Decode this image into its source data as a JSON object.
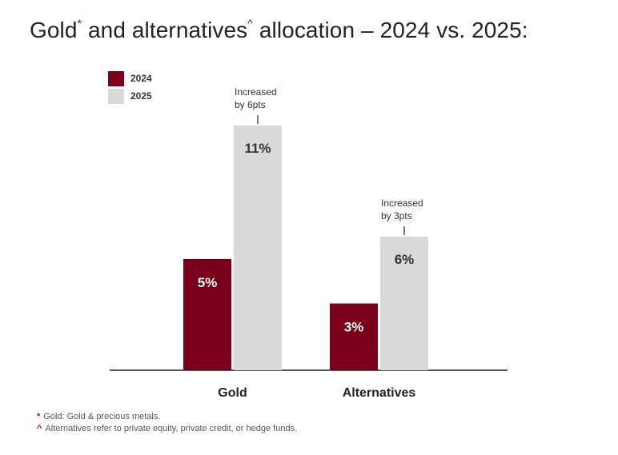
{
  "title": {
    "part1": "Gold",
    "mark1": "*",
    "part2": " and alternatives",
    "mark2": "^",
    "part3": " allocation – 2024 vs. 2025:"
  },
  "colors": {
    "series_2024": "#7a0019",
    "series_2025": "#d9d9d9",
    "accent_mark": "#b0001e"
  },
  "chart_data": {
    "type": "bar",
    "categories": [
      "Gold",
      "Alternatives"
    ],
    "series": [
      {
        "name": "2024",
        "values": [
          5,
          3
        ],
        "labels": [
          "5%",
          "3%"
        ]
      },
      {
        "name": "2025",
        "values": [
          11,
          6
        ],
        "labels": [
          "11%",
          "6%"
        ]
      }
    ],
    "annotations": [
      {
        "category": "Gold",
        "line1": "Increased",
        "line2": "by 6pts"
      },
      {
        "category": "Alternatives",
        "line1": "Increased",
        "line2": "by 3pts"
      }
    ],
    "unit": "%",
    "ylim": [
      0,
      11
    ],
    "legend_position": "top-left"
  },
  "footnotes": [
    {
      "mark": "*",
      "text": "Gold: Gold & precious metals."
    },
    {
      "mark": "^",
      "text": "Alternatives refer to private equity, private credit, or hedge funds."
    }
  ]
}
